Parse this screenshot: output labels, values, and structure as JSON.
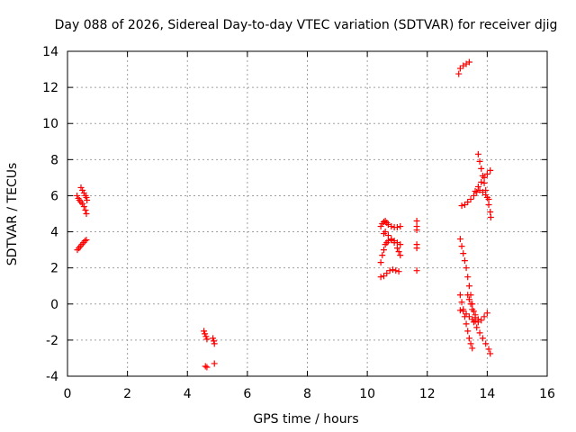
{
  "chart_data": {
    "type": "scatter",
    "title": "Day 088 of 2026, Sidereal Day-to-day VTEC variation (SDTVAR) for receiver djig",
    "xlabel": "GPS time / hours",
    "ylabel": "SDTVAR / TECUs",
    "xlim": [
      0,
      16
    ],
    "ylim": [
      -4,
      14
    ],
    "x_ticks": [
      0,
      2,
      4,
      6,
      8,
      10,
      12,
      14,
      16
    ],
    "y_ticks": [
      -4,
      -2,
      0,
      2,
      4,
      6,
      8,
      10,
      12,
      14
    ],
    "x_tick_labels": [
      "0",
      "2",
      "4",
      "6",
      "8",
      "10",
      "12",
      "14",
      "16"
    ],
    "y_tick_labels": [
      "-4",
      "-2",
      "0",
      "2",
      "4",
      "6",
      "8",
      "10",
      "12",
      "14"
    ],
    "grid": true,
    "marker": "plus",
    "color": "#ff0000",
    "series": [
      {
        "values": [
          [
            0.32,
            6.0
          ],
          [
            0.36,
            5.85
          ],
          [
            0.4,
            5.75
          ],
          [
            0.45,
            5.65
          ],
          [
            0.5,
            5.55
          ],
          [
            0.55,
            5.4
          ],
          [
            0.6,
            5.2
          ],
          [
            0.63,
            5.0
          ],
          [
            0.45,
            6.45
          ],
          [
            0.5,
            6.3
          ],
          [
            0.55,
            6.15
          ],
          [
            0.6,
            6.0
          ],
          [
            0.63,
            5.9
          ],
          [
            0.65,
            5.75
          ],
          [
            0.33,
            3.0
          ],
          [
            0.38,
            3.1
          ],
          [
            0.43,
            3.2
          ],
          [
            0.48,
            3.3
          ],
          [
            0.53,
            3.4
          ],
          [
            0.58,
            3.5
          ],
          [
            0.63,
            3.55
          ],
          [
            4.55,
            -1.5
          ],
          [
            4.58,
            -1.65
          ],
          [
            4.62,
            -1.8
          ],
          [
            4.65,
            -1.95
          ],
          [
            4.85,
            -1.9
          ],
          [
            4.88,
            -2.05
          ],
          [
            4.9,
            -2.2
          ],
          [
            4.6,
            -3.45
          ],
          [
            4.65,
            -3.5
          ],
          [
            4.9,
            -3.3
          ],
          [
            10.45,
            4.3
          ],
          [
            10.5,
            4.45
          ],
          [
            10.55,
            4.55
          ],
          [
            10.6,
            4.6
          ],
          [
            10.65,
            4.5
          ],
          [
            10.7,
            4.4
          ],
          [
            10.8,
            4.3
          ],
          [
            10.9,
            4.25
          ],
          [
            11.0,
            4.25
          ],
          [
            11.1,
            4.3
          ],
          [
            10.45,
            2.3
          ],
          [
            10.5,
            2.7
          ],
          [
            10.55,
            3.0
          ],
          [
            10.6,
            3.3
          ],
          [
            10.65,
            3.4
          ],
          [
            10.7,
            3.5
          ],
          [
            10.8,
            3.55
          ],
          [
            10.9,
            3.5
          ],
          [
            11.0,
            3.4
          ],
          [
            11.1,
            3.3
          ],
          [
            10.55,
            3.9
          ],
          [
            10.6,
            4.0
          ],
          [
            10.7,
            3.8
          ],
          [
            10.8,
            3.6
          ],
          [
            10.9,
            3.4
          ],
          [
            11.0,
            3.1
          ],
          [
            11.05,
            2.9
          ],
          [
            11.1,
            2.7
          ],
          [
            10.45,
            1.5
          ],
          [
            10.55,
            1.55
          ],
          [
            10.65,
            1.7
          ],
          [
            10.75,
            1.85
          ],
          [
            10.85,
            1.9
          ],
          [
            10.95,
            1.85
          ],
          [
            11.05,
            1.8
          ],
          [
            11.65,
            4.6
          ],
          [
            11.65,
            4.3
          ],
          [
            11.65,
            4.1
          ],
          [
            11.65,
            3.3
          ],
          [
            11.65,
            3.1
          ],
          [
            11.65,
            1.85
          ],
          [
            13.05,
            12.75
          ],
          [
            13.1,
            13.05
          ],
          [
            13.2,
            13.2
          ],
          [
            13.3,
            13.3
          ],
          [
            13.4,
            13.4
          ],
          [
            13.15,
            5.45
          ],
          [
            13.25,
            5.5
          ],
          [
            13.35,
            5.65
          ],
          [
            13.45,
            5.8
          ],
          [
            13.55,
            6.0
          ],
          [
            13.65,
            6.2
          ],
          [
            13.75,
            6.3
          ],
          [
            13.85,
            6.2
          ],
          [
            13.95,
            6.05
          ],
          [
            14.05,
            5.8
          ],
          [
            13.6,
            6.25
          ],
          [
            13.7,
            6.5
          ],
          [
            13.8,
            6.75
          ],
          [
            13.9,
            7.0
          ],
          [
            14.0,
            7.2
          ],
          [
            14.1,
            7.4
          ],
          [
            13.7,
            8.3
          ],
          [
            13.75,
            7.9
          ],
          [
            13.8,
            7.5
          ],
          [
            13.85,
            7.1
          ],
          [
            13.9,
            6.7
          ],
          [
            13.95,
            6.3
          ],
          [
            14.0,
            5.9
          ],
          [
            14.05,
            5.5
          ],
          [
            14.1,
            5.1
          ],
          [
            14.12,
            4.8
          ],
          [
            13.1,
            3.6
          ],
          [
            13.15,
            3.2
          ],
          [
            13.2,
            2.8
          ],
          [
            13.25,
            2.4
          ],
          [
            13.3,
            2.0
          ],
          [
            13.35,
            1.5
          ],
          [
            13.4,
            1.0
          ],
          [
            13.45,
            0.5
          ],
          [
            13.5,
            0.0
          ],
          [
            13.55,
            -0.4
          ],
          [
            13.6,
            -0.75
          ],
          [
            13.7,
            -1.0
          ],
          [
            13.8,
            -0.9
          ],
          [
            13.9,
            -0.7
          ],
          [
            14.0,
            -0.5
          ],
          [
            13.35,
            0.5
          ],
          [
            13.4,
            0.25
          ],
          [
            13.45,
            0.0
          ],
          [
            13.5,
            -0.3
          ],
          [
            13.6,
            -0.6
          ],
          [
            13.7,
            -0.85
          ],
          [
            13.1,
            -0.35
          ],
          [
            13.2,
            -0.4
          ],
          [
            13.3,
            -0.55
          ],
          [
            13.4,
            -0.7
          ],
          [
            13.5,
            -0.85
          ],
          [
            13.6,
            -0.95
          ],
          [
            13.1,
            0.5
          ],
          [
            13.15,
            0.1
          ],
          [
            13.2,
            -0.3
          ],
          [
            13.25,
            -0.7
          ],
          [
            13.3,
            -1.1
          ],
          [
            13.35,
            -1.5
          ],
          [
            13.4,
            -1.9
          ],
          [
            13.45,
            -2.2
          ],
          [
            13.5,
            -2.45
          ],
          [
            13.55,
            -1.0
          ],
          [
            13.65,
            -1.3
          ],
          [
            13.75,
            -1.6
          ],
          [
            13.85,
            -1.9
          ],
          [
            13.95,
            -2.2
          ],
          [
            14.05,
            -2.5
          ],
          [
            14.1,
            -2.75
          ]
        ]
      }
    ]
  }
}
